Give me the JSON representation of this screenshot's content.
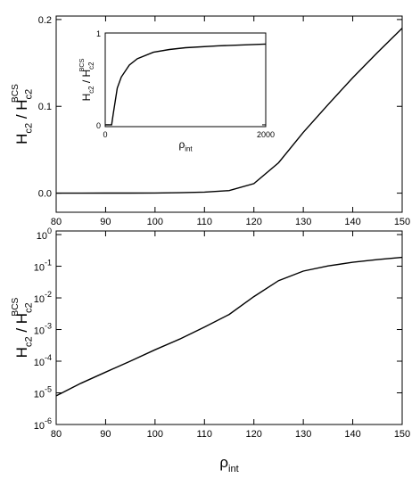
{
  "chart_data": [
    {
      "type": "line",
      "x": [
        80,
        85,
        90,
        95,
        100,
        105,
        110,
        115,
        120,
        125,
        130,
        135,
        140,
        145,
        150
      ],
      "values": [
        8e-06,
        2e-05,
        4.5e-05,
        0.0001,
        0.00023,
        0.0005,
        0.0012,
        0.003,
        0.011,
        0.035,
        0.07,
        0.102,
        0.133,
        0.162,
        0.19
      ],
      "color": "#000000",
      "xlim": [
        80,
        150
      ],
      "xticks": [
        80,
        90,
        100,
        110,
        120,
        130,
        140,
        150
      ],
      "ylim": [
        -0.022,
        0.204
      ],
      "yticks": [
        {
          "value": 0,
          "label": "0.0"
        },
        0.1,
        0.2
      ],
      "ylabel": {
        "main": "H",
        "sub": "c2",
        "mid": " / H",
        "sub2": "c2",
        "sup": "BCS"
      }
    },
    {
      "type": "line",
      "x": [
        0,
        80,
        100,
        150,
        200,
        300,
        400,
        600,
        800,
        1000,
        1400,
        2000
      ],
      "values": [
        0,
        0,
        0.12,
        0.4,
        0.52,
        0.65,
        0.72,
        0.79,
        0.82,
        0.84,
        0.86,
        0.88
      ],
      "color": "#000000",
      "xlim": [
        0,
        2000
      ],
      "xticks": [
        0,
        2000
      ],
      "ylim": [
        -0.02,
        1.0
      ],
      "yticks": [
        0,
        1
      ],
      "xlabel": {
        "main": "ρ",
        "sub": "int"
      },
      "ylabel": {
        "main": "H",
        "sub": "c2",
        "mid": " / H",
        "sub2": "c2",
        "sup": "BCS"
      }
    },
    {
      "type": "line",
      "log_y": true,
      "x": [
        80,
        85,
        90,
        95,
        100,
        105,
        110,
        115,
        120,
        125,
        130,
        135,
        140,
        145,
        150
      ],
      "values": [
        8e-06,
        2e-05,
        4.5e-05,
        0.0001,
        0.00023,
        0.0005,
        0.0012,
        0.003,
        0.011,
        0.035,
        0.07,
        0.102,
        0.133,
        0.162,
        0.19
      ],
      "color": "#000000",
      "xlim": [
        80,
        150
      ],
      "xticks": [
        80,
        90,
        100,
        110,
        120,
        130,
        140,
        150
      ],
      "ylim": [
        1e-06,
        1.3
      ],
      "yticks": [
        {
          "value": 1e-06,
          "label": "10",
          "exponent": "-6"
        },
        {
          "value": 1e-05,
          "label": "10",
          "exponent": "-5"
        },
        {
          "value": 0.0001,
          "label": "10",
          "exponent": "-4"
        },
        {
          "value": 0.001,
          "label": "10",
          "exponent": "-3"
        },
        {
          "value": 0.01,
          "label": "10",
          "exponent": "-2"
        },
        {
          "value": 0.1,
          "label": "10",
          "exponent": "-1"
        },
        {
          "value": 1,
          "label": "10",
          "exponent": "0"
        }
      ],
      "xlabel": {
        "main": "ρ",
        "sub": "int"
      },
      "ylabel": {
        "main": "H",
        "sub": "c2",
        "mid": " / H",
        "sub2": "c2",
        "sup": "BCS"
      }
    }
  ]
}
